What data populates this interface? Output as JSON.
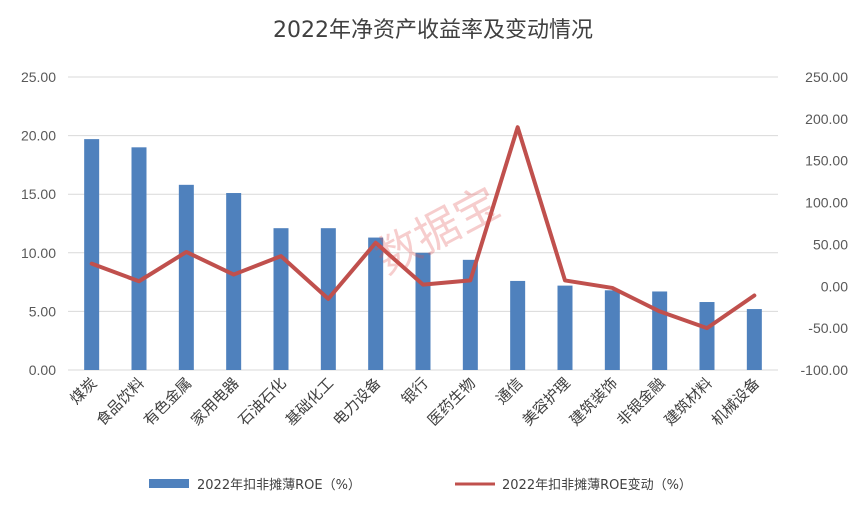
{
  "chart_data": {
    "type": "bar",
    "title": "2022年净资产收益率及变动情况",
    "categories": [
      "煤炭",
      "食品饮料",
      "有色金属",
      "家用电器",
      "石油石化",
      "基础化工",
      "电力设备",
      "银行",
      "医药生物",
      "通信",
      "美容护理",
      "建筑装饰",
      "非银金融",
      "建筑材料",
      "机械设备"
    ],
    "series": [
      {
        "name": "2022年扣非摊薄ROE（%）",
        "type": "bar",
        "axis": "left",
        "color": "#4f81bd",
        "values": [
          19.7,
          19.0,
          15.8,
          15.1,
          12.1,
          12.1,
          11.3,
          10.0,
          9.4,
          7.6,
          7.2,
          6.8,
          6.7,
          5.8,
          5.2
        ]
      },
      {
        "name": "2022年扣非摊薄ROE变动（%）",
        "type": "line",
        "axis": "right",
        "color": "#c0504d",
        "values": [
          27,
          6,
          41,
          14,
          36,
          -15,
          52,
          2,
          7,
          190,
          7,
          -2,
          -30,
          -50,
          -11
        ]
      }
    ],
    "yleft_ticks": [
      "0.00",
      "5.00",
      "10.00",
      "15.00",
      "20.00",
      "25.00"
    ],
    "yright_ticks": [
      "-100.00",
      "-50.00",
      "0.00",
      "50.00",
      "100.00",
      "150.00",
      "200.00",
      "250.00"
    ],
    "yleft_lim": [
      0,
      25
    ],
    "yright_lim": [
      -100,
      250
    ],
    "grid": true,
    "legend_position": "bottom"
  },
  "watermark": "数据宝"
}
